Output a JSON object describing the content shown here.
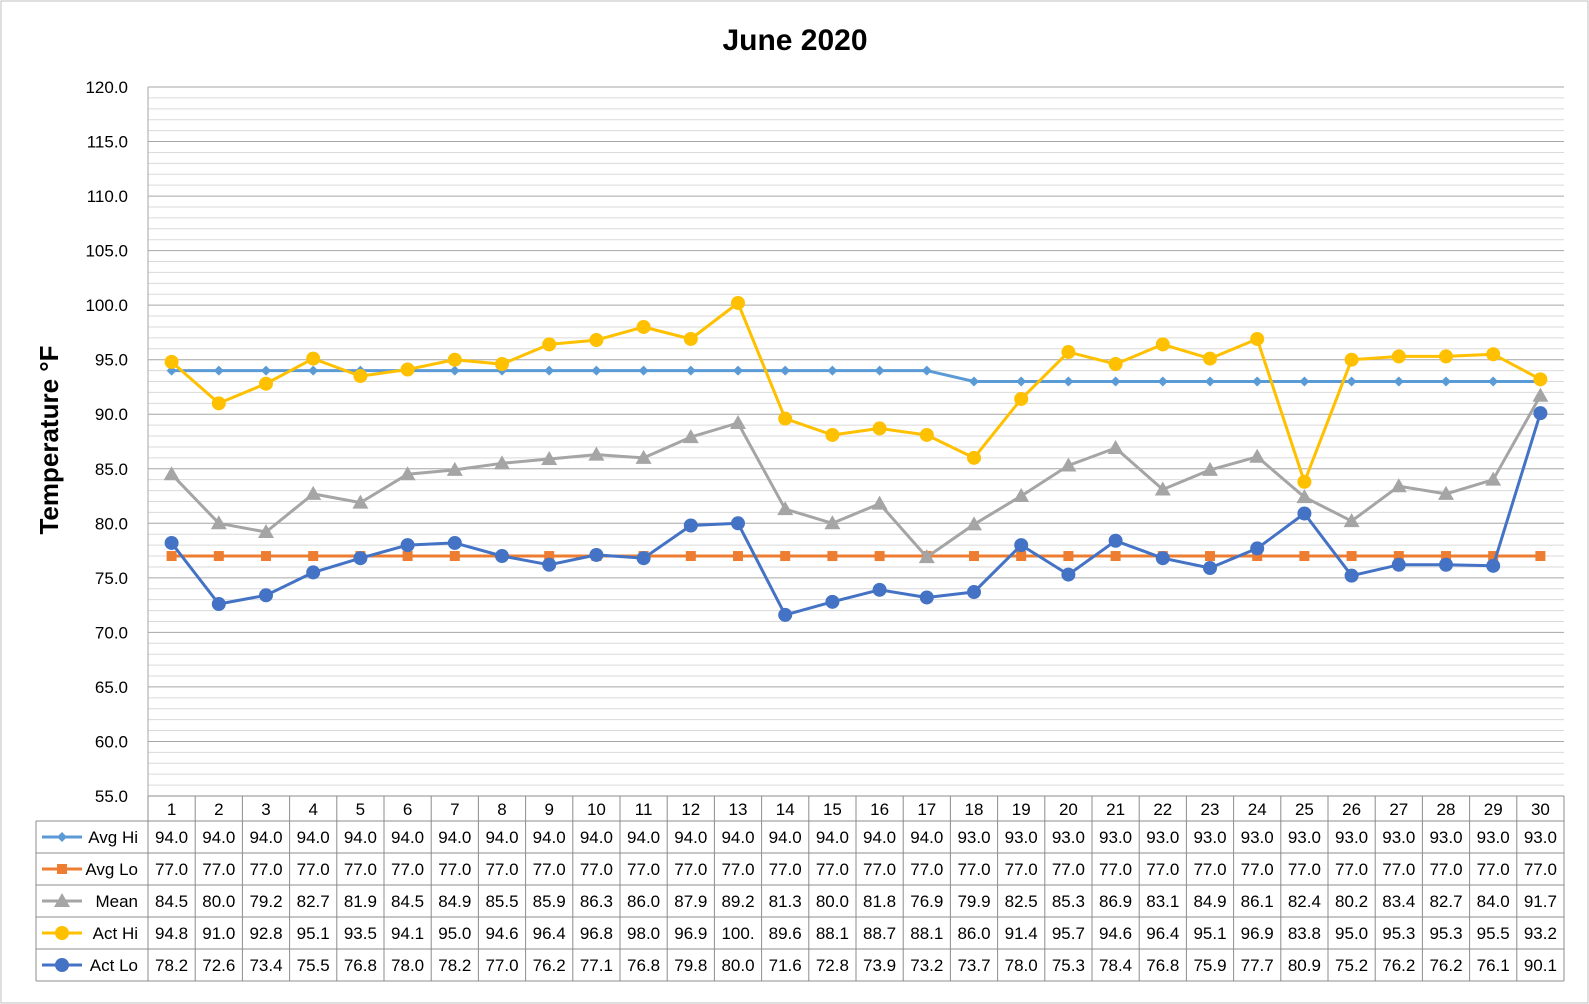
{
  "chart_data": {
    "type": "line",
    "title": "June 2020",
    "xlabel": "",
    "ylabel": "Temperature °F",
    "ylim": [
      55,
      120
    ],
    "y_major_step": 5,
    "y_minor_step": 1,
    "y_tick_labels": [
      "120.0",
      "115.0",
      "110.0",
      "105.0",
      "100.0",
      "95.0",
      "90.0",
      "85.0",
      "80.0",
      "75.0",
      "70.0",
      "65.0",
      "60.0",
      "55.0"
    ],
    "grid": true,
    "legend": "data-table-below",
    "categories": [
      "1",
      "2",
      "3",
      "4",
      "5",
      "6",
      "7",
      "8",
      "9",
      "10",
      "11",
      "12",
      "13",
      "14",
      "15",
      "16",
      "17",
      "18",
      "19",
      "20",
      "21",
      "22",
      "23",
      "24",
      "25",
      "26",
      "27",
      "28",
      "29",
      "30"
    ],
    "series": [
      {
        "name": "Avg Hi",
        "color": "#5B9BD5",
        "marker": "diamond",
        "values": [
          94,
          94,
          94,
          94,
          94,
          94,
          94,
          94,
          94,
          94,
          94,
          94,
          94,
          94,
          94,
          94,
          94,
          93,
          93,
          93,
          93,
          93,
          93,
          93,
          93,
          93,
          93,
          93,
          93,
          93
        ],
        "labels": [
          "94.0",
          "94.0",
          "94.0",
          "94.0",
          "94.0",
          "94.0",
          "94.0",
          "94.0",
          "94.0",
          "94.0",
          "94.0",
          "94.0",
          "94.0",
          "94.0",
          "94.0",
          "94.0",
          "94.0",
          "93.0",
          "93.0",
          "93.0",
          "93.0",
          "93.0",
          "93.0",
          "93.0",
          "93.0",
          "93.0",
          "93.0",
          "93.0",
          "93.0",
          "93.0"
        ]
      },
      {
        "name": "Avg Lo",
        "color": "#ED7D31",
        "marker": "square",
        "values": [
          77,
          77,
          77,
          77,
          77,
          77,
          77,
          77,
          77,
          77,
          77,
          77,
          77,
          77,
          77,
          77,
          77,
          77,
          77,
          77,
          77,
          77,
          77,
          77,
          77,
          77,
          77,
          77,
          77,
          77
        ],
        "labels": [
          "77.0",
          "77.0",
          "77.0",
          "77.0",
          "77.0",
          "77.0",
          "77.0",
          "77.0",
          "77.0",
          "77.0",
          "77.0",
          "77.0",
          "77.0",
          "77.0",
          "77.0",
          "77.0",
          "77.0",
          "77.0",
          "77.0",
          "77.0",
          "77.0",
          "77.0",
          "77.0",
          "77.0",
          "77.0",
          "77.0",
          "77.0",
          "77.0",
          "77.0",
          "77.0"
        ]
      },
      {
        "name": "Mean",
        "color": "#A5A5A5",
        "marker": "triangle",
        "values": [
          84.5,
          80.0,
          79.2,
          82.7,
          81.9,
          84.5,
          84.9,
          85.5,
          85.9,
          86.3,
          86.0,
          87.9,
          89.2,
          81.3,
          80.0,
          81.8,
          76.9,
          79.9,
          82.5,
          85.3,
          86.9,
          83.1,
          84.9,
          86.1,
          82.4,
          80.2,
          83.4,
          82.7,
          84.0,
          91.7
        ],
        "labels": [
          "84.5",
          "80.0",
          "79.2",
          "82.7",
          "81.9",
          "84.5",
          "84.9",
          "85.5",
          "85.9",
          "86.3",
          "86.0",
          "87.9",
          "89.2",
          "81.3",
          "80.0",
          "81.8",
          "76.9",
          "79.9",
          "82.5",
          "85.3",
          "86.9",
          "83.1",
          "84.9",
          "86.1",
          "82.4",
          "80.2",
          "83.4",
          "82.7",
          "84.0",
          "91.7"
        ]
      },
      {
        "name": "Act Hi",
        "color": "#FFC000",
        "marker": "circle",
        "values": [
          94.8,
          91.0,
          92.8,
          95.1,
          93.5,
          94.1,
          95.0,
          94.6,
          96.4,
          96.8,
          98.0,
          96.9,
          100.2,
          89.6,
          88.1,
          88.7,
          88.1,
          86.0,
          91.4,
          95.7,
          94.6,
          96.4,
          95.1,
          96.9,
          83.8,
          95.0,
          95.3,
          95.3,
          95.5,
          93.2
        ],
        "labels": [
          "94.8",
          "91.0",
          "92.8",
          "95.1",
          "93.5",
          "94.1",
          "95.0",
          "94.6",
          "96.4",
          "96.8",
          "98.0",
          "96.9",
          "100.",
          "89.6",
          "88.1",
          "88.7",
          "88.1",
          "86.0",
          "91.4",
          "95.7",
          "94.6",
          "96.4",
          "95.1",
          "96.9",
          "83.8",
          "95.0",
          "95.3",
          "95.3",
          "95.5",
          "93.2"
        ]
      },
      {
        "name": "Act Lo",
        "color": "#4472C4",
        "marker": "circle",
        "values": [
          78.2,
          72.6,
          73.4,
          75.5,
          76.8,
          78.0,
          78.2,
          77.0,
          76.2,
          77.1,
          76.8,
          79.8,
          80.0,
          71.6,
          72.8,
          73.9,
          73.2,
          73.7,
          78.0,
          75.3,
          78.4,
          76.8,
          75.9,
          77.7,
          80.9,
          75.2,
          76.2,
          76.2,
          76.1,
          90.1
        ],
        "labels": [
          "78.2",
          "72.6",
          "73.4",
          "75.5",
          "76.8",
          "78.0",
          "78.2",
          "77.0",
          "76.2",
          "77.1",
          "76.8",
          "79.8",
          "80.0",
          "71.6",
          "72.8",
          "73.9",
          "73.2",
          "73.7",
          "78.0",
          "75.3",
          "78.4",
          "76.8",
          "75.9",
          "77.7",
          "80.9",
          "75.2",
          "76.2",
          "76.2",
          "76.1",
          "90.1"
        ]
      }
    ],
    "colors": {
      "major_grid": "#A6A6A6",
      "minor_grid": "#DADADA",
      "table_border": "#8C8C8C",
      "chart_border": "#BFBFBF"
    }
  }
}
